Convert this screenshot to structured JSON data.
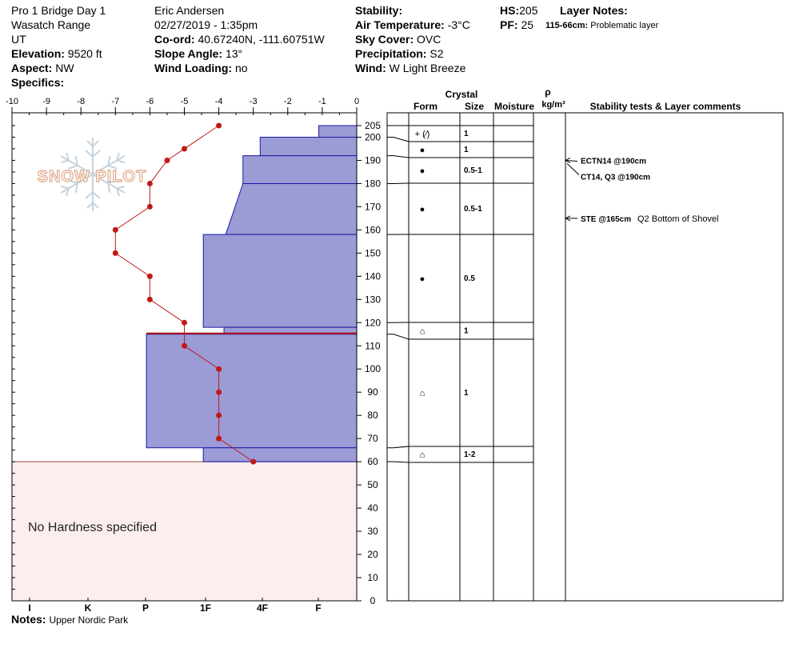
{
  "header": {
    "title": "Pro 1 Bridge Day 1",
    "range": "Wasatch Range",
    "state": "UT",
    "elevation_label": "Elevation:",
    "elevation": "9520 ft",
    "aspect_label": "Aspect:",
    "aspect": "NW",
    "specifics_label": "Specifics:",
    "observer": "Eric Andersen",
    "datetime": "02/27/2019 - 1:35pm",
    "coord_label": "Co-ord:",
    "coord": "40.67240N, -111.60751W",
    "slope_label": "Slope Angle:",
    "slope": "13°",
    "wind_loading_label": "Wind Loading:",
    "wind_loading": "no",
    "stability_label": "Stability:",
    "air_temp_label": "Air Temperature:",
    "air_temp": "-3°C",
    "sky_label": "Sky Cover:",
    "sky": "OVC",
    "precip_label": "Precipitation:",
    "precip": "S2",
    "wind_label": "Wind:",
    "wind": "W Light Breeze",
    "hs_label": "HS:",
    "hs": "205",
    "pf_label": "PF:",
    "pf": "25",
    "layer_notes_label": "Layer Notes:",
    "layer_note_range": "115-66cm:",
    "layer_note_text": "Problematic layer"
  },
  "notes_label": "Notes:",
  "notes": "Upper Nordic Park",
  "no_hardness_text": "No Hardness specified",
  "watermark": "SNOW PILOT",
  "table": {
    "crystal_label": "Crystal",
    "rho_label": "ρ",
    "form_label": "Form",
    "size_label": "Size",
    "moisture_label": "Moisture",
    "density_label": "kg/m³",
    "comments_label": "Stability tests & Layer comments"
  },
  "chart_data": {
    "type": "snow-profile",
    "temp_axis": {
      "ticks": [
        "-10",
        "-9",
        "-8",
        "-7",
        "-6",
        "-5",
        "-4",
        "-3",
        "-2",
        "-1",
        "0"
      ],
      "range": [
        -10,
        0
      ]
    },
    "hardness_axis": {
      "labels": [
        "I",
        "K",
        "P",
        "1F",
        "4F",
        "F"
      ]
    },
    "height_axis": {
      "ticks": [
        0,
        10,
        20,
        30,
        40,
        50,
        60,
        70,
        80,
        90,
        100,
        110,
        120,
        130,
        140,
        150,
        160,
        170,
        180,
        190,
        200,
        205
      ],
      "range": [
        0,
        205
      ]
    },
    "temperature_profile": [
      {
        "height": 205,
        "temp": -4
      },
      {
        "height": 195,
        "temp": -5
      },
      {
        "height": 190,
        "temp": -5.5
      },
      {
        "height": 180,
        "temp": -6
      },
      {
        "height": 170,
        "temp": -6
      },
      {
        "height": 160,
        "temp": -7
      },
      {
        "height": 150,
        "temp": -7
      },
      {
        "height": 140,
        "temp": -6
      },
      {
        "height": 130,
        "temp": -6
      },
      {
        "height": 120,
        "temp": -5
      },
      {
        "height": 110,
        "temp": -5
      },
      {
        "height": 100,
        "temp": -4
      },
      {
        "height": 90,
        "temp": -4
      },
      {
        "height": 80,
        "temp": -4
      },
      {
        "height": 70,
        "temp": -4
      },
      {
        "height": 60,
        "temp": -3
      }
    ],
    "hardness_profile": [
      {
        "top": 205,
        "bottom": 200,
        "hardness_top": -1.1,
        "hardness_bottom": -1.1
      },
      {
        "top": 200,
        "bottom": 192,
        "hardness_top": -2.8,
        "hardness_bottom": -2.8
      },
      {
        "top": 192,
        "bottom": 180,
        "hardness_top": -3.3,
        "hardness_bottom": -3.3
      },
      {
        "top": 180,
        "bottom": 158,
        "hardness_top": -3.3,
        "hardness_bottom": -3.8
      },
      {
        "top": 158,
        "bottom": 118,
        "hardness_top": -4.45,
        "hardness_bottom": -4.45
      },
      {
        "top": 118,
        "bottom": 115,
        "hardness_top": -3.85,
        "hardness_bottom": -3.85
      },
      {
        "top": 115,
        "bottom": 66,
        "hardness_top": -6.1,
        "hardness_bottom": -6.1
      },
      {
        "top": 66,
        "bottom": 60,
        "hardness_top": -4.45,
        "hardness_bottom": -4.45
      }
    ],
    "problematic_layer": {
      "top": 115,
      "bottom": 66
    },
    "layers": [
      {
        "top": 205,
        "bottom": 200,
        "form": "+ (⁄)",
        "size": "1"
      },
      {
        "top": 200,
        "bottom": 192,
        "form": "●",
        "size": "1"
      },
      {
        "top": 192,
        "bottom": 180,
        "form": "●",
        "size": "0.5-1"
      },
      {
        "top": 180,
        "bottom": 158,
        "form": "●",
        "size": "0.5-1"
      },
      {
        "top": 158,
        "bottom": 120,
        "form": "●",
        "size": "0.5"
      },
      {
        "top": 120,
        "bottom": 115,
        "form": "⌂",
        "size": "1"
      },
      {
        "top": 115,
        "bottom": 66,
        "form": "⌂",
        "size": "1"
      },
      {
        "top": 66,
        "bottom": 60,
        "form": "⌂",
        "size": "1-2"
      }
    ],
    "stability_tests": [
      {
        "height": 190,
        "text": "ECTN14 @190cm"
      },
      {
        "height": 190,
        "text": "CT14, Q3 @190cm"
      },
      {
        "height": 165,
        "text": "STE @165cm",
        "comment": "Q2 Bottom of Shovel"
      }
    ],
    "colors": {
      "hardness_fill": "#9b9bd6",
      "hardness_stroke": "#1a1aa8",
      "temp_line": "#c01818",
      "no_hardness_fill": "#fdeeee",
      "problematic_line": "#b01010"
    }
  }
}
